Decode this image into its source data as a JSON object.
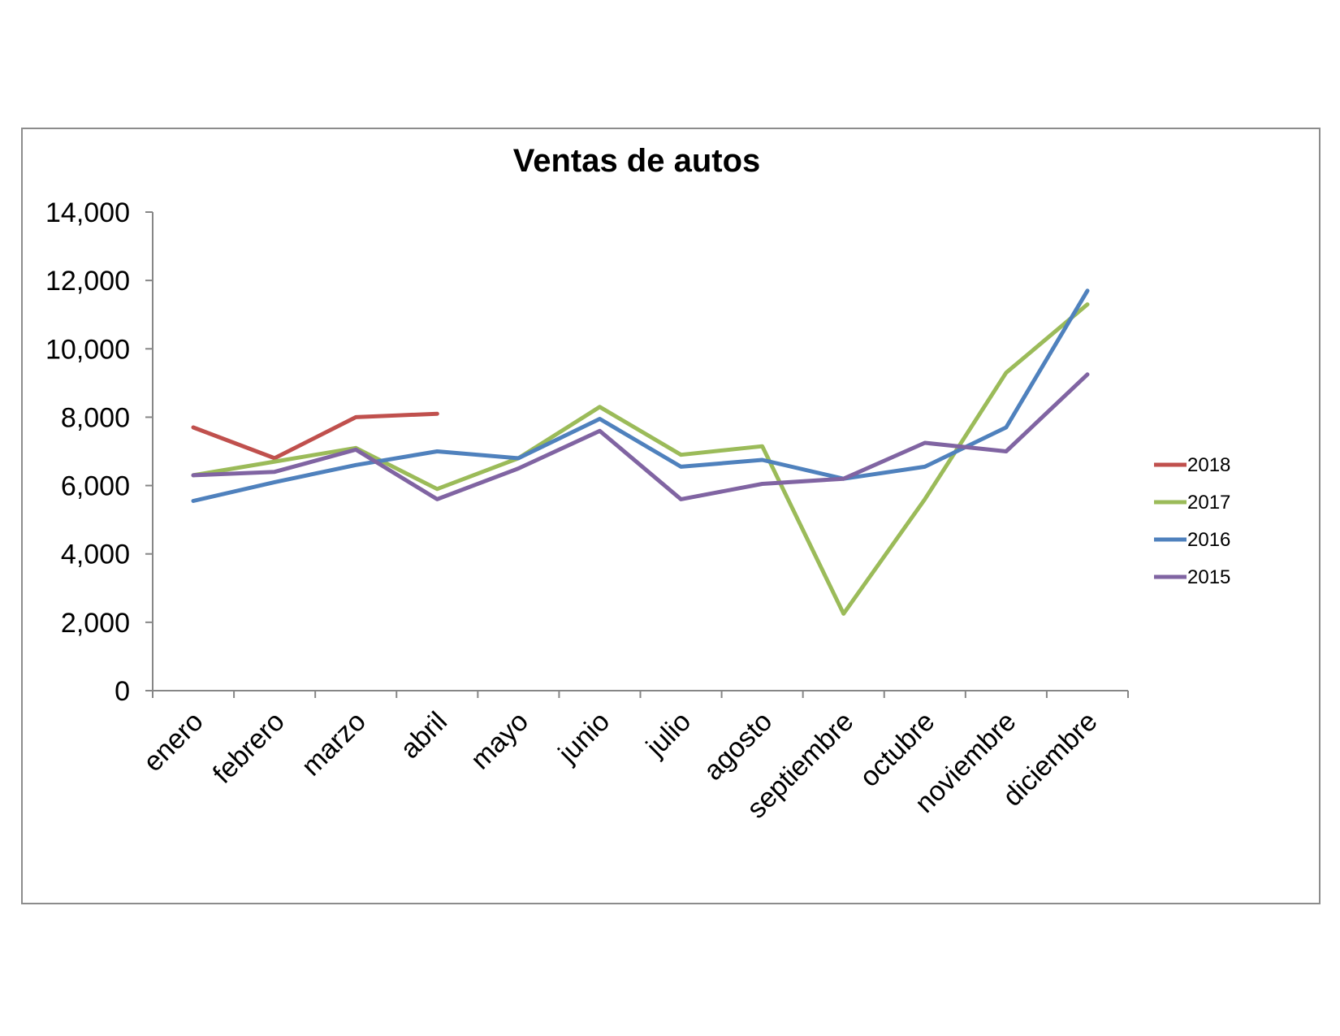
{
  "chart_data": {
    "type": "line",
    "title": "Ventas de autos",
    "xlabel": "",
    "ylabel": "",
    "categories": [
      "enero",
      "febrero",
      "marzo",
      "abril",
      "mayo",
      "junio",
      "julio",
      "agosto",
      "septiembre",
      "octubre",
      "noviembre",
      "diciembre"
    ],
    "ylim": [
      0,
      14000
    ],
    "yticks": [
      0,
      2000,
      4000,
      6000,
      8000,
      10000,
      12000,
      14000
    ],
    "ytick_labels": [
      "0",
      "2,000",
      "4,000",
      "6,000",
      "8,000",
      "10,000",
      "12,000",
      "14,000"
    ],
    "grid": false,
    "legend_position": "right",
    "series": [
      {
        "name": "2018",
        "color": "#c0504d",
        "values": [
          7700,
          6800,
          8000,
          8100,
          null,
          null,
          null,
          null,
          null,
          null,
          null,
          null
        ]
      },
      {
        "name": "2017",
        "color": "#9bbb59",
        "values": [
          6300,
          6700,
          7100,
          5900,
          6800,
          8300,
          6900,
          7150,
          2250,
          5600,
          9300,
          11300
        ]
      },
      {
        "name": "2016",
        "color": "#4f81bd",
        "values": [
          5550,
          6100,
          6600,
          7000,
          6800,
          7950,
          6550,
          6750,
          6200,
          6550,
          7700,
          11700
        ]
      },
      {
        "name": "2015",
        "color": "#8064a2",
        "values": [
          6300,
          6400,
          7050,
          5600,
          6500,
          7600,
          5600,
          6050,
          6200,
          7250,
          7000,
          9250
        ]
      }
    ]
  }
}
